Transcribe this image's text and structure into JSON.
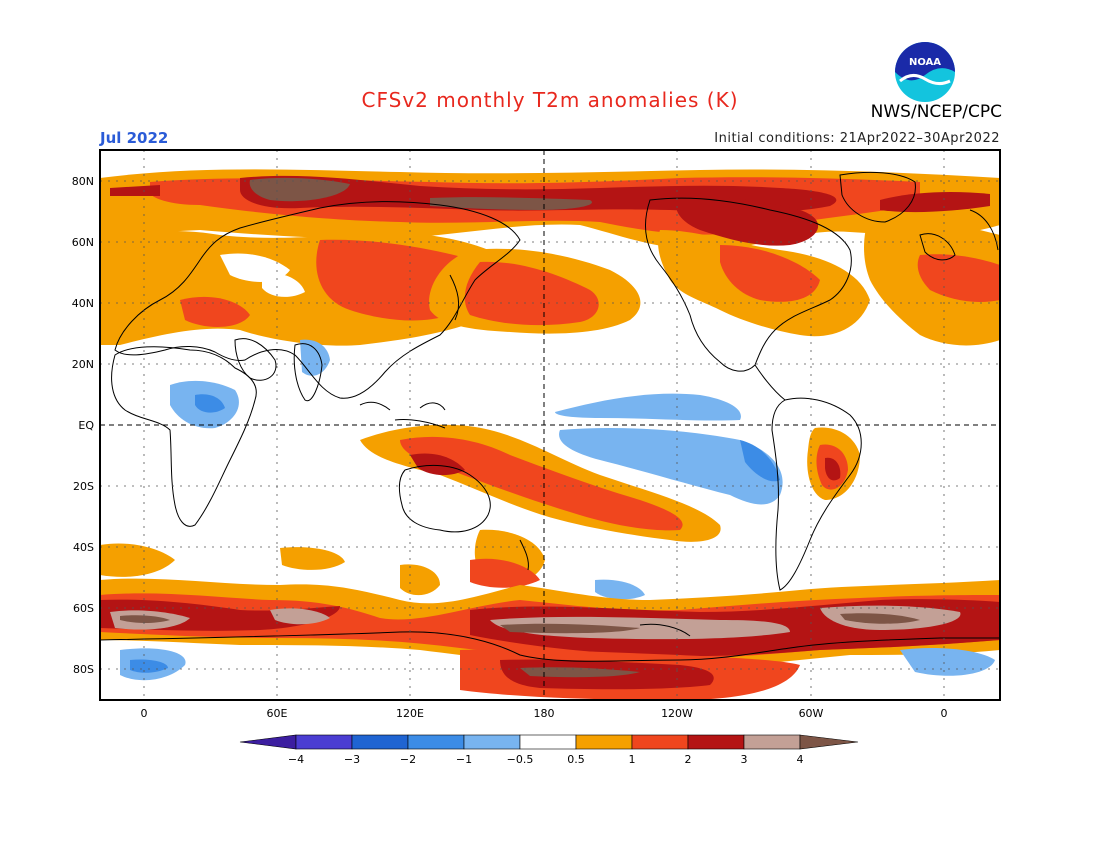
{
  "title": "CFSv2 monthly T2m anomalies (K)",
  "org": "NWS/NCEP/CPC",
  "logo_text": "NOAA",
  "valid_month": "Jul 2022",
  "initial_conditions": "Initial conditions: 21Apr2022–30Apr2022",
  "map": {
    "lat_labels": [
      "80N",
      "60N",
      "40N",
      "20N",
      "EQ",
      "20S",
      "40S",
      "60S",
      "80S"
    ],
    "lon_labels": [
      "0",
      "60E",
      "120E",
      "180",
      "120W",
      "60W",
      "0"
    ],
    "lat_values": [
      80,
      60,
      40,
      20,
      0,
      -20,
      -40,
      -60,
      -80
    ],
    "lon_values": [
      0,
      60,
      120,
      180,
      240,
      300,
      360
    ]
  },
  "colorbar": {
    "labels": [
      "−4",
      "−3",
      "−2",
      "−1",
      "−0.5",
      "0.5",
      "1",
      "2",
      "3",
      "4"
    ],
    "colors": [
      "#3c1ea0",
      "#4b3dd2",
      "#1f64d2",
      "#3c8ce6",
      "#78b4f0",
      "#ffffff",
      "#f5a000",
      "#f0461e",
      "#b41414",
      "#c3a096",
      "#7d5546"
    ]
  },
  "colors": {
    "brown": "#7d5546",
    "pink": "#c3a096",
    "darkred": "#b41414",
    "red": "#f0461e",
    "orange": "#f5a000",
    "lightblue": "#78b4f0",
    "blue": "#3c8ce6"
  }
}
